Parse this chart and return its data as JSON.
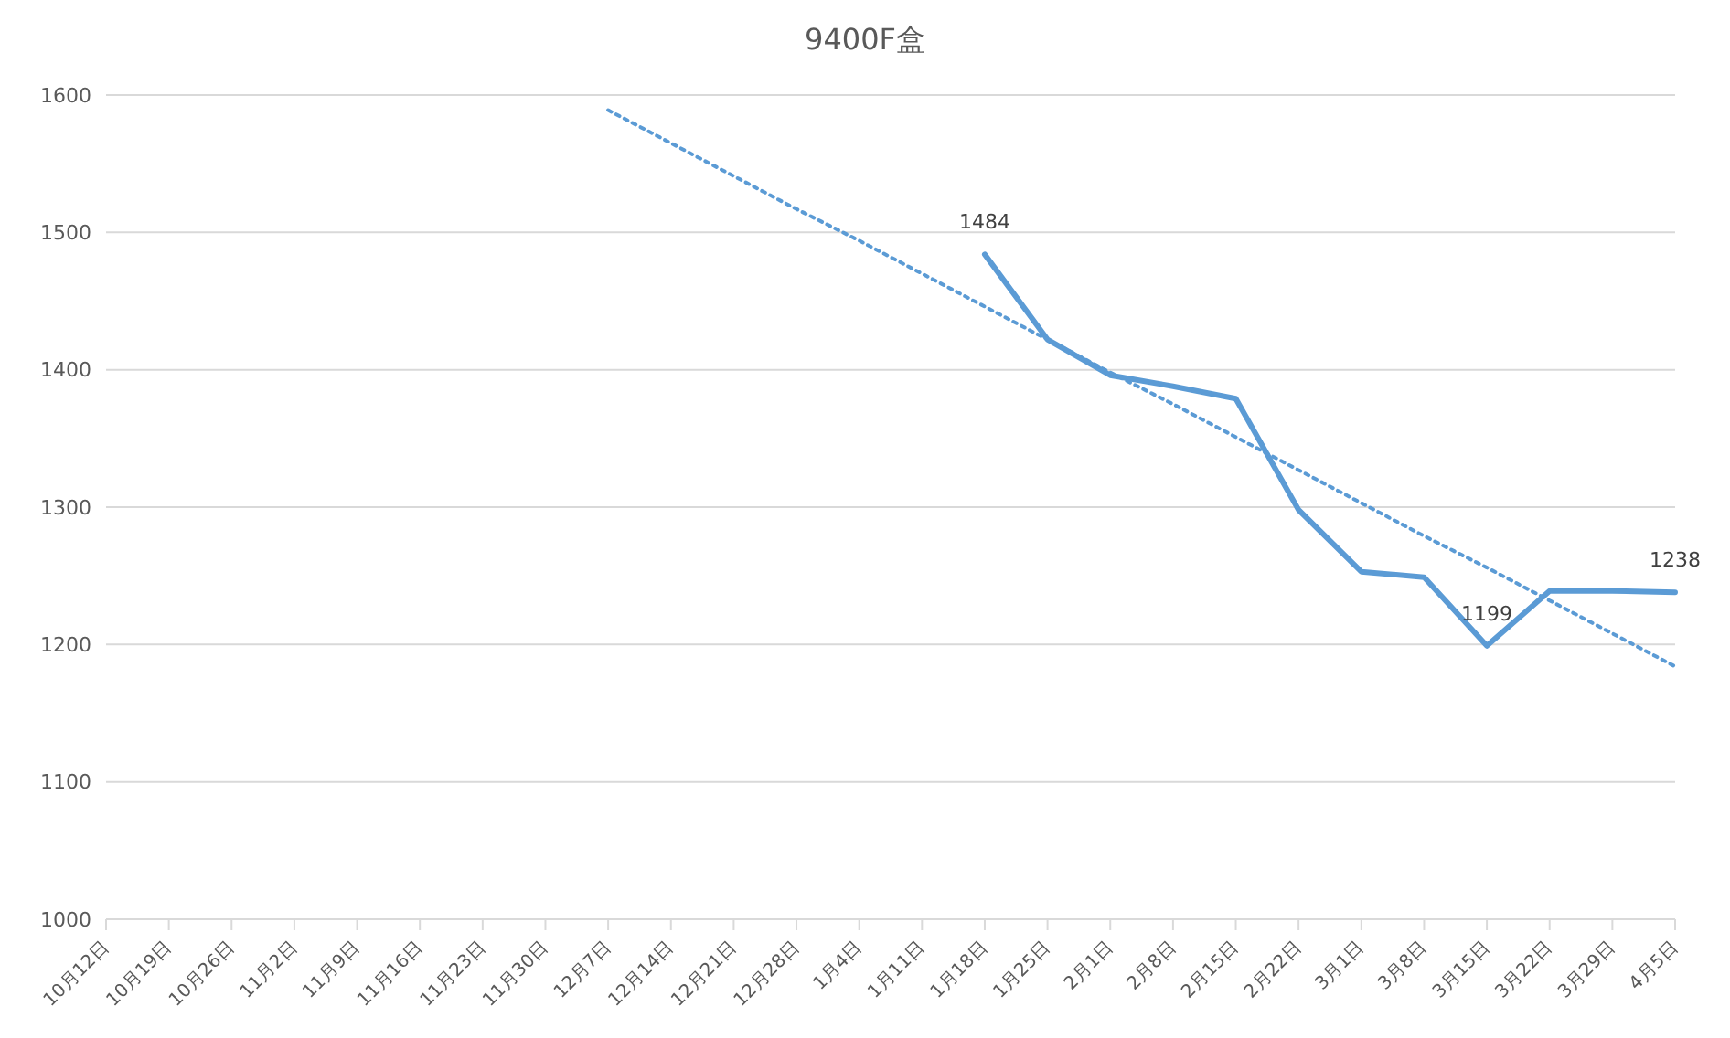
{
  "chart_data": {
    "type": "line",
    "title": "9400F盒",
    "categories": [
      "10月12日",
      "10月19日",
      "10月26日",
      "11月2日",
      "11月9日",
      "11月16日",
      "11月23日",
      "11月30日",
      "12月7日",
      "12月14日",
      "12月21日",
      "12月28日",
      "1月4日",
      "1月11日",
      "1月18日",
      "1月25日",
      "2月1日",
      "2月8日",
      "2月15日",
      "2月22日",
      "3月1日",
      "3月8日",
      "3月15日",
      "3月22日",
      "3月29日",
      "4月5日"
    ],
    "series": [
      {
        "color": "#5b9bd5",
        "line_style": "solid",
        "values": [
          null,
          null,
          null,
          null,
          null,
          null,
          null,
          null,
          null,
          null,
          null,
          null,
          null,
          null,
          1484,
          1422,
          1396,
          1388,
          1379,
          1298,
          1253,
          1249,
          1199,
          1239,
          1239,
          1238
        ],
        "value_labels": [
          null,
          null,
          null,
          null,
          null,
          null,
          null,
          null,
          null,
          null,
          null,
          null,
          null,
          null,
          "1484",
          null,
          null,
          null,
          null,
          null,
          null,
          null,
          "1199",
          null,
          null,
          "1238"
        ]
      },
      {
        "type": "line",
        "color": "#5b9bd5",
        "line_style": "dotted",
        "values": [
          null,
          null,
          null,
          null,
          null,
          null,
          null,
          null,
          1589,
          1565,
          1541,
          1517,
          1494,
          1470,
          1446,
          1422,
          1398,
          1375,
          1351,
          1327,
          1303,
          1279,
          1256,
          1232,
          1208,
          1184
        ]
      }
    ],
    "ylim": [
      1000,
      1600
    ],
    "yticks": [
      1000,
      1100,
      1200,
      1300,
      1400,
      1500,
      1600
    ],
    "grid": "y",
    "marker": "none"
  }
}
